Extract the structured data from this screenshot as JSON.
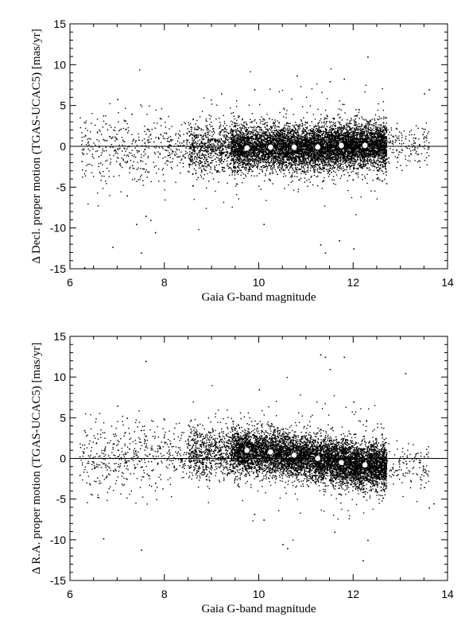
{
  "chart_data": [
    {
      "type": "scatter",
      "panel": "top",
      "title": "",
      "xlabel": "Gaia G-band magnitude",
      "ylabel": "Δ Decl. proper motion (TGAS-UCAC5) [mas/yr]",
      "xlim": [
        6,
        14
      ],
      "ylim": [
        -15,
        15
      ],
      "x_ticks": [
        6,
        8,
        10,
        12,
        14
      ],
      "y_ticks": [
        -15,
        -10,
        -5,
        0,
        5,
        10,
        15
      ],
      "reference_line_y": 0,
      "series": [
        {
          "kind": "binned-means",
          "x": [
            9.75,
            10.25,
            10.75,
            11.25,
            11.75,
            12.25
          ],
          "values": [
            -0.2,
            -0.1,
            -0.1,
            -0.1,
            0.1,
            0.1
          ]
        },
        {
          "kind": "points",
          "count": 9000,
          "description": "individual star differences",
          "outliers_x": [
            6.6,
            6.9,
            7.0,
            7.2,
            7.4,
            7.5,
            7.6,
            7.7,
            7.8,
            7.3,
            9.2,
            9.9,
            10.1,
            10.8,
            11.3,
            11.4,
            11.5,
            11.8,
            12.0,
            12.3,
            12.7,
            13.6,
            13.5,
            13.1,
            6.3,
            7.9,
            11.7
          ],
          "outliers_y": [
            -1.2,
            -12.3,
            5.8,
            -6.0,
            -9.5,
            -13.0,
            -8.5,
            -9.0,
            -10.5,
            4.0,
            6.5,
            7.0,
            -9.5,
            8.7,
            -12.0,
            -13.0,
            8.0,
            8.3,
            -12.5,
            11.0,
            -4.5,
            7.0,
            6.5,
            1.0,
            -14.8,
            3.5,
            -11.5
          ]
        }
      ]
    },
    {
      "type": "scatter",
      "panel": "bottom",
      "title": "",
      "xlabel": "Gaia G-band magnitude",
      "ylabel": "Δ R.A. proper motion (TGAS-UCAC5) [mas/yr]",
      "xlim": [
        6,
        14
      ],
      "ylim": [
        -15,
        15
      ],
      "x_ticks": [
        6,
        8,
        10,
        12,
        14
      ],
      "y_ticks": [
        -15,
        -10,
        -5,
        0,
        5,
        10,
        15
      ],
      "reference_line_y": 0,
      "series": [
        {
          "kind": "binned-means",
          "x": [
            9.75,
            10.25,
            10.75,
            11.25,
            11.75,
            12.25
          ],
          "values": [
            1.0,
            0.8,
            0.4,
            0.0,
            -0.5,
            -0.8
          ]
        },
        {
          "kind": "points",
          "count": 9000,
          "description": "individual star differences",
          "outliers_x": [
            6.2,
            6.7,
            7.0,
            7.5,
            7.6,
            7.2,
            10.0,
            10.1,
            10.5,
            10.6,
            11.3,
            11.4,
            11.5,
            11.6,
            11.8,
            12.0,
            12.2,
            12.3,
            13.1,
            13.5,
            13.7,
            13.6,
            9.9,
            6.3,
            7.8
          ],
          "outliers_y": [
            -2.0,
            -9.8,
            6.5,
            -11.2,
            12.0,
            5.0,
            8.5,
            -7.5,
            -10.5,
            -11.0,
            12.8,
            12.5,
            11.0,
            -9.0,
            12.5,
            7.0,
            -12.5,
            -10.0,
            10.5,
            -3.5,
            -5.5,
            -6.0,
            -6.8,
            3.5,
            -3.0
          ]
        }
      ]
    }
  ]
}
